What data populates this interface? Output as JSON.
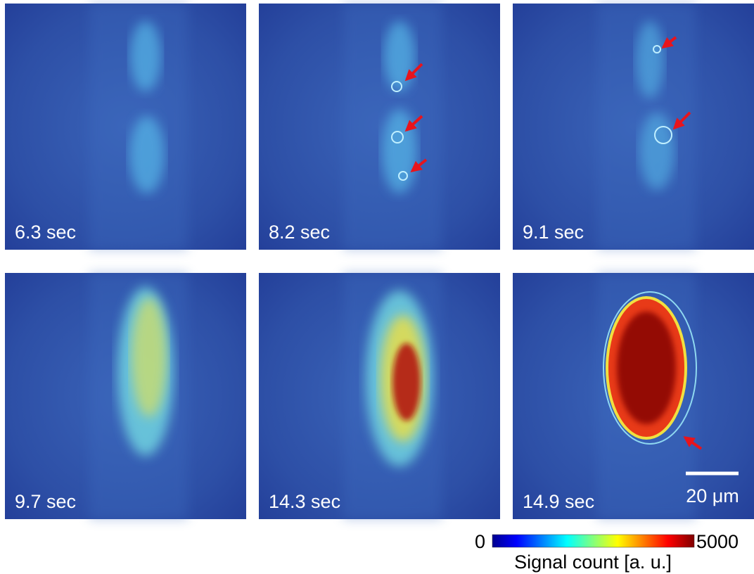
{
  "panels": [
    {
      "label": "6.3 sec"
    },
    {
      "label": "8.2 sec"
    },
    {
      "label": "9.1 sec"
    },
    {
      "label": "9.7 sec"
    },
    {
      "label": "14.3 sec"
    },
    {
      "label": "14.9 sec"
    }
  ],
  "scale_bar": {
    "label": "20 μm"
  },
  "colorbar": {
    "min": 0,
    "max": 5000,
    "label": "Signal count [a. u.]"
  }
}
